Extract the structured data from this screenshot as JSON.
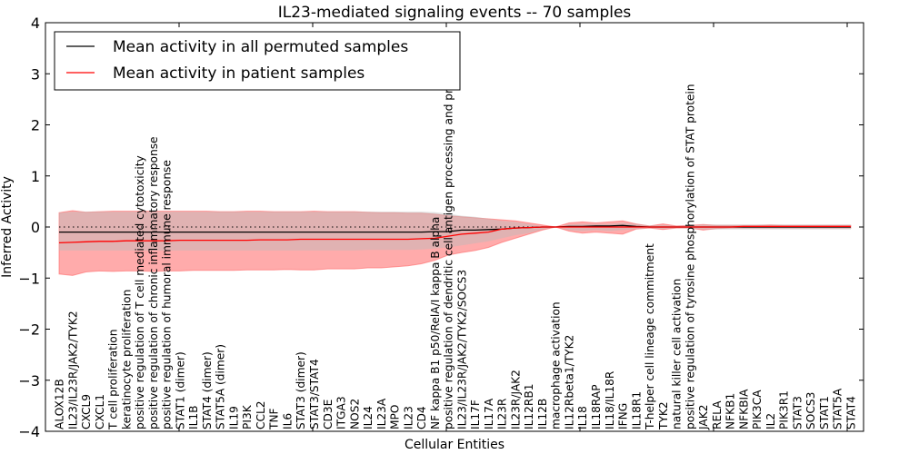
{
  "chart_data": {
    "type": "line",
    "title": "IL23-mediated signaling events -- 70 samples",
    "xlabel": "Cellular Entities",
    "ylabel": "Inferred Activity",
    "ylim": [
      -4,
      4
    ],
    "yticks": [
      -4,
      -3,
      -2,
      -1,
      0,
      1,
      2,
      3,
      4
    ],
    "ytick_labels": [
      "−4",
      "−3",
      "−2",
      "−1",
      "0",
      "1",
      "2",
      "3",
      "4"
    ],
    "xticks": [
      10,
      20,
      30,
      40,
      50,
      60,
      70
    ],
    "reference_line": 0,
    "grid": false,
    "legend": {
      "position": "top-left",
      "entries": [
        {
          "label": "Mean activity in all permuted samples",
          "color": "#000000"
        },
        {
          "label": "Mean activity in patient samples",
          "color": "#ff0000"
        }
      ]
    },
    "colors": {
      "permuted_line": "#000000",
      "patient_line": "#ff0000",
      "patient_band": "#ff6666",
      "permuted_band": "#bbbbbb",
      "reference_line": "#000000"
    },
    "categories": [
      "ALOX12B",
      "IL23/IL23R/JAK2/TYK2",
      "CXCL9",
      "CXCL1",
      "T cell proliferation",
      "keratinocyte proliferation",
      "positive regulation of T cell mediated cytotoxicity",
      "positive regulation of chronic inflammatory response",
      "positive regulation of humoral immune response",
      "STAT1 (dimer)",
      "IL1B",
      "STAT4 (dimer)",
      "STAT5A (dimer)",
      "IL19",
      "PI3K",
      "CCL2",
      "TNF",
      "IL6",
      "STAT3 (dimer)",
      "STAT3/STAT4",
      "CD3E",
      "ITGA3",
      "NOS2",
      "IL24",
      "IL23A",
      "MPO",
      "IL23",
      "CD4",
      "NF kappa B1 p50/RelA/I kappa B alpha",
      "positive regulation of dendritic cell antigen processing and presentation",
      "IL23/IL23R/JAK2/TYK2/SOCS3",
      "IL17F",
      "IL17A",
      "IL23R",
      "IL23R/JAK2",
      "IL12RB1",
      "IL12B",
      "macrophage activation",
      "IL12Rbeta1/TYK2",
      "IL18",
      "IL18RAP",
      "IL18/IL18R",
      "IFNG",
      "IL18R1",
      "T-helper cell lineage commitment",
      "TYK2",
      "natural killer cell activation",
      "positive regulation of tyrosine phosphorylation of STAT protein",
      "JAK2",
      "RELA",
      "NFKB1",
      "NFKBIA",
      "PIK3CA",
      "IL2",
      "PIK3R1",
      "STAT3",
      "SOCS3",
      "STAT1",
      "STAT5A",
      "STAT4"
    ],
    "series": [
      {
        "name": "Mean activity in all permuted samples",
        "values": [
          -0.1,
          -0.1,
          -0.1,
          -0.1,
          -0.1,
          -0.1,
          -0.1,
          -0.1,
          -0.1,
          -0.1,
          -0.1,
          -0.1,
          -0.1,
          -0.1,
          -0.1,
          -0.1,
          -0.1,
          -0.1,
          -0.1,
          -0.1,
          -0.1,
          -0.1,
          -0.1,
          -0.1,
          -0.1,
          -0.1,
          -0.1,
          -0.1,
          -0.09,
          -0.09,
          -0.06,
          -0.06,
          -0.05,
          -0.04,
          -0.02,
          -0.01,
          0.0,
          0.0,
          0.01,
          0.01,
          0.02,
          0.02,
          0.03,
          0.01,
          0.0,
          0.0,
          0.0,
          0.0,
          0.0,
          0.0,
          0.0,
          0.0,
          0.0,
          0.0,
          0.0,
          0.0,
          0.0,
          0.0,
          0.0,
          0.0
        ],
        "band_lower": [
          -0.46,
          -0.46,
          -0.46,
          -0.46,
          -0.46,
          -0.46,
          -0.46,
          -0.46,
          -0.46,
          -0.46,
          -0.46,
          -0.46,
          -0.46,
          -0.46,
          -0.46,
          -0.46,
          -0.46,
          -0.46,
          -0.46,
          -0.46,
          -0.46,
          -0.46,
          -0.46,
          -0.45,
          -0.45,
          -0.45,
          -0.45,
          -0.44,
          -0.42,
          -0.4,
          -0.36,
          -0.32,
          -0.28,
          -0.22,
          -0.16,
          -0.12,
          -0.05,
          0.0,
          -0.06,
          -0.08,
          -0.06,
          -0.08,
          -0.06,
          -0.04,
          -0.02,
          -0.04,
          -0.02,
          -0.03,
          -0.05,
          -0.05,
          -0.05,
          -0.05,
          -0.05,
          -0.05,
          -0.05,
          -0.05,
          -0.05,
          -0.05,
          -0.05,
          -0.05
        ],
        "band_upper": [
          0.28,
          0.3,
          0.3,
          0.3,
          0.3,
          0.3,
          0.3,
          0.3,
          0.3,
          0.3,
          0.3,
          0.3,
          0.3,
          0.3,
          0.3,
          0.3,
          0.3,
          0.3,
          0.3,
          0.3,
          0.3,
          0.3,
          0.3,
          0.3,
          0.3,
          0.3,
          0.3,
          0.3,
          0.29,
          0.26,
          0.22,
          0.2,
          0.16,
          0.12,
          0.1,
          0.06,
          0.02,
          0.0,
          0.05,
          0.06,
          0.06,
          0.06,
          0.08,
          0.06,
          0.03,
          0.04,
          0.02,
          0.03,
          0.05,
          0.05,
          0.05,
          0.05,
          0.05,
          0.05,
          0.05,
          0.05,
          0.05,
          0.05,
          0.05,
          0.05
        ]
      },
      {
        "name": "Mean activity in patient samples",
        "values": [
          -0.31,
          -0.3,
          -0.29,
          -0.28,
          -0.28,
          -0.27,
          -0.27,
          -0.27,
          -0.27,
          -0.26,
          -0.26,
          -0.26,
          -0.26,
          -0.26,
          -0.26,
          -0.25,
          -0.25,
          -0.25,
          -0.24,
          -0.24,
          -0.24,
          -0.24,
          -0.24,
          -0.24,
          -0.24,
          -0.24,
          -0.24,
          -0.23,
          -0.22,
          -0.18,
          -0.14,
          -0.12,
          -0.1,
          -0.04,
          -0.02,
          -0.01,
          0.0,
          0.0,
          0.0,
          0.0,
          0.0,
          0.0,
          0.0,
          0.0,
          0.0,
          0.0,
          0.0,
          0.0,
          0.0,
          0.0,
          0.0,
          0.01,
          0.01,
          0.01,
          0.01,
          0.01,
          0.01,
          0.01,
          0.01,
          0.01
        ],
        "band_lower": [
          -0.92,
          -0.95,
          -0.88,
          -0.86,
          -0.87,
          -0.86,
          -0.86,
          -0.87,
          -0.86,
          -0.86,
          -0.85,
          -0.85,
          -0.85,
          -0.85,
          -0.84,
          -0.84,
          -0.84,
          -0.83,
          -0.84,
          -0.84,
          -0.82,
          -0.82,
          -0.82,
          -0.8,
          -0.8,
          -0.78,
          -0.76,
          -0.72,
          -0.65,
          -0.55,
          -0.5,
          -0.46,
          -0.4,
          -0.3,
          -0.22,
          -0.14,
          -0.06,
          0.0,
          -0.08,
          -0.12,
          -0.1,
          -0.12,
          -0.14,
          -0.04,
          -0.02,
          -0.05,
          -0.02,
          -0.02,
          -0.06,
          -0.03,
          -0.02,
          -0.02,
          -0.02,
          -0.02,
          -0.02,
          -0.02,
          -0.02,
          -0.02,
          -0.02,
          -0.02
        ],
        "band_upper": [
          0.28,
          0.32,
          0.29,
          0.3,
          0.31,
          0.31,
          0.31,
          0.31,
          0.31,
          0.31,
          0.31,
          0.31,
          0.3,
          0.3,
          0.31,
          0.31,
          0.3,
          0.3,
          0.3,
          0.31,
          0.3,
          0.3,
          0.3,
          0.29,
          0.28,
          0.28,
          0.27,
          0.27,
          0.25,
          0.22,
          0.2,
          0.18,
          0.16,
          0.14,
          0.12,
          0.08,
          0.04,
          0.0,
          0.08,
          0.1,
          0.08,
          0.1,
          0.12,
          0.06,
          0.02,
          0.06,
          0.02,
          0.03,
          0.05,
          0.03,
          0.03,
          0.03,
          0.03,
          0.04,
          0.03,
          0.03,
          0.03,
          0.03,
          0.03,
          0.03
        ]
      }
    ]
  }
}
